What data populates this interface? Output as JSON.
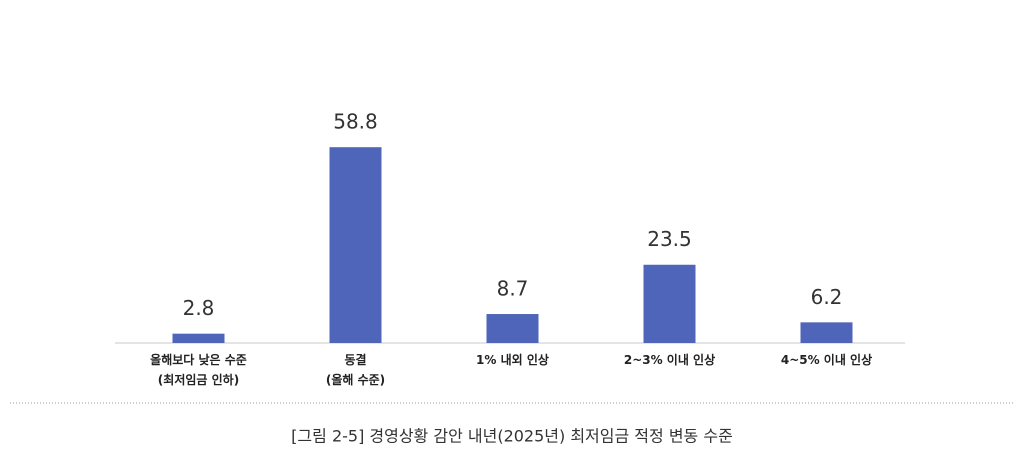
{
  "chart_data": {
    "type": "bar",
    "categories": [
      "올해보다 낮은 수준\n(최저임금 인하)",
      "동결\n(올해 수준)",
      "1% 내외 인상",
      "2~3% 이내 인상",
      "4~5% 이내 인상"
    ],
    "values": [
      2.8,
      58.8,
      8.7,
      23.5,
      6.2
    ],
    "color": "#4f65b9",
    "caption": "[그림 2-5] 경영상황 감안 내년(2025년) 최저임금 적정 변동 수준"
  }
}
